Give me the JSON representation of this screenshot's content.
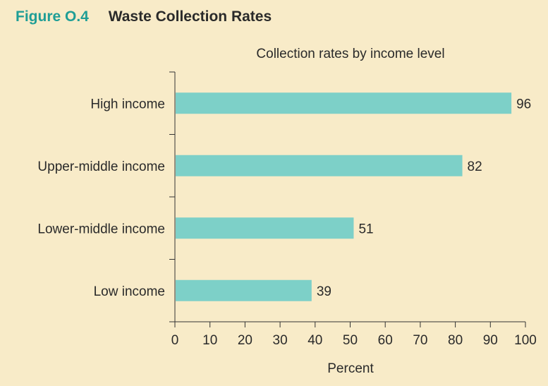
{
  "figure": {
    "label": "Figure O.4",
    "title": "Waste Collection Rates"
  },
  "colors": {
    "background": "#f8ebc8",
    "bar": "#7dd0c8",
    "accent": "#1f9e96",
    "axis": "#333333"
  },
  "chart_data": {
    "type": "bar",
    "orientation": "horizontal",
    "subtitle": "Collection rates by income level",
    "categories": [
      "High income",
      "Upper-middle income",
      "Lower-middle income",
      "Low income"
    ],
    "values": [
      96,
      82,
      51,
      39
    ],
    "value_labels": [
      "96",
      "82",
      "51",
      "39"
    ],
    "xlabel": "Percent",
    "ylabel": "",
    "xlim": [
      0,
      100
    ],
    "xticks": [
      "0",
      "10",
      "20",
      "30",
      "40",
      "50",
      "60",
      "70",
      "80",
      "90",
      "100"
    ],
    "grid": false,
    "legend": "none"
  }
}
